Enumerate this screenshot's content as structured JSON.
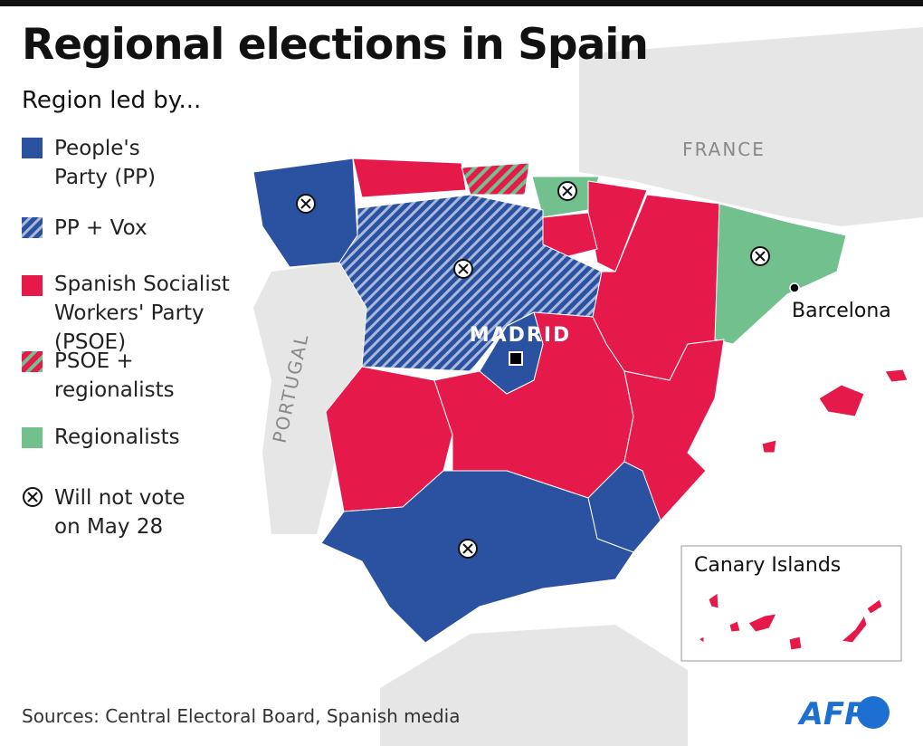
{
  "header": {
    "title": "Regional elections in Spain",
    "subtitle": "Region led by..."
  },
  "legend": [
    {
      "label": "People's Party (PP)"
    },
    {
      "label": "PP + Vox"
    },
    {
      "label": "Spanish Socialist Workers' Party (PSOE)"
    },
    {
      "label": "PSOE + regionalists"
    },
    {
      "label": "Regionalists"
    },
    {
      "label": "Will not vote on May 28"
    }
  ],
  "map_labels": {
    "france": "FRANCE",
    "portugal": "PORTUGAL",
    "madrid": "MADRID",
    "barcelona": "Barcelona",
    "canary": "Canary Islands"
  },
  "footer": {
    "source": "Sources: Central Electoral Board, Spanish media",
    "logo": "AFP"
  }
}
